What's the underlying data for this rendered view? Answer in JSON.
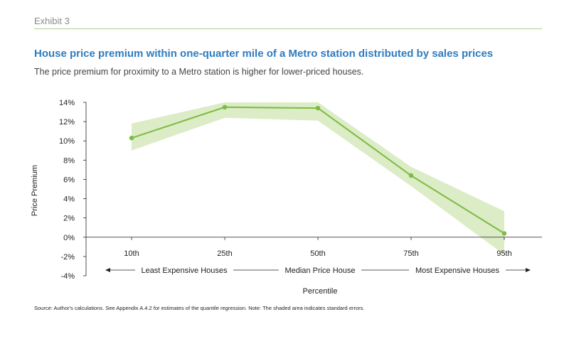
{
  "header": {
    "exhibit": "Exhibit 3",
    "title": "House price premium within one-quarter mile of a Metro station distributed by sales prices",
    "subtitle": "The price premium for proximity to a Metro station is higher for lower-priced houses."
  },
  "footer": {
    "source": "Source: Author's calculations. See Appendix A.4.2 for estimates of the quantile regression. Note: The shaded area indicates standard errors."
  },
  "colors": {
    "line": "#7dbb42",
    "band": "#dbecc6",
    "rule": "#a9d18e",
    "title": "#2f7cc0"
  },
  "chart_data": {
    "type": "line",
    "categories": [
      "10th",
      "25th",
      "50th",
      "75th",
      "95th"
    ],
    "values": [
      10.3,
      13.5,
      13.4,
      6.4,
      0.4
    ],
    "band_upper": [
      11.8,
      14.0,
      14.0,
      7.3,
      2.7
    ],
    "band_lower": [
      9.0,
      12.4,
      12.1,
      5.3,
      -1.8
    ],
    "ylabel": "Price Premium",
    "xlabel": "Percentile",
    "ylim": [
      -4,
      14
    ],
    "yticks": [
      -4,
      -2,
      0,
      2,
      4,
      6,
      8,
      10,
      12,
      14
    ],
    "ytick_labels": [
      "-4%",
      "-2%",
      "0%",
      "2%",
      "4%",
      "6%",
      "8%",
      "10%",
      "12%",
      "14%"
    ],
    "range_labels": {
      "left": "Least Expensive Houses",
      "middle": "Median Price House",
      "right": "Most Expensive Houses"
    },
    "grid": false
  }
}
